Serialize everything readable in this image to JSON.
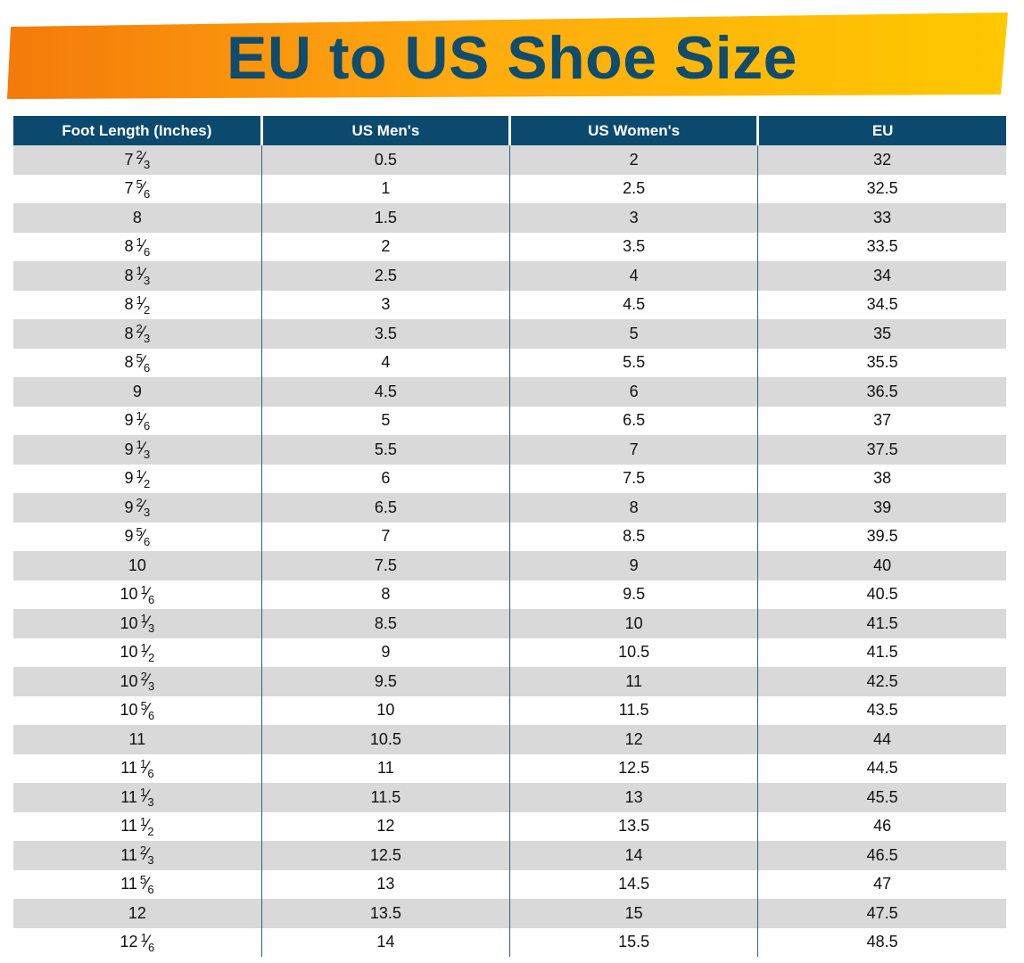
{
  "title": "EU to US Shoe Size",
  "colors": {
    "banner_start": "#f47a0a",
    "banner_end": "#ffc800",
    "title_text": "#0f4c6e",
    "header_bg": "#0b4a6e",
    "row_shade": "#d9d9d9"
  },
  "table": {
    "headers": [
      "Foot Length (Inches)",
      "US Men's",
      "US Women's",
      "EU"
    ],
    "rows": [
      {
        "foot": {
          "whole": "7",
          "num": "2",
          "den": "3"
        },
        "men": "0.5",
        "women": "2",
        "eu": "32"
      },
      {
        "foot": {
          "whole": "7",
          "num": "5",
          "den": "6"
        },
        "men": "1",
        "women": "2.5",
        "eu": "32.5"
      },
      {
        "foot": {
          "whole": "8",
          "num": "",
          "den": ""
        },
        "men": "1.5",
        "women": "3",
        "eu": "33"
      },
      {
        "foot": {
          "whole": "8",
          "num": "1",
          "den": "6"
        },
        "men": "2",
        "women": "3.5",
        "eu": "33.5"
      },
      {
        "foot": {
          "whole": "8",
          "num": "1",
          "den": "3"
        },
        "men": "2.5",
        "women": "4",
        "eu": "34"
      },
      {
        "foot": {
          "whole": "8",
          "num": "1",
          "den": "2"
        },
        "men": "3",
        "women": "4.5",
        "eu": "34.5"
      },
      {
        "foot": {
          "whole": "8",
          "num": "2",
          "den": "3"
        },
        "men": "3.5",
        "women": "5",
        "eu": "35"
      },
      {
        "foot": {
          "whole": "8",
          "num": "5",
          "den": "6"
        },
        "men": "4",
        "women": "5.5",
        "eu": "35.5"
      },
      {
        "foot": {
          "whole": "9",
          "num": "",
          "den": ""
        },
        "men": "4.5",
        "women": "6",
        "eu": "36.5"
      },
      {
        "foot": {
          "whole": "9",
          "num": "1",
          "den": "6"
        },
        "men": "5",
        "women": "6.5",
        "eu": "37"
      },
      {
        "foot": {
          "whole": "9",
          "num": "1",
          "den": "3"
        },
        "men": "5.5",
        "women": "7",
        "eu": "37.5"
      },
      {
        "foot": {
          "whole": "9",
          "num": "1",
          "den": "2"
        },
        "men": "6",
        "women": "7.5",
        "eu": "38"
      },
      {
        "foot": {
          "whole": "9",
          "num": "2",
          "den": "3"
        },
        "men": "6.5",
        "women": "8",
        "eu": "39"
      },
      {
        "foot": {
          "whole": "9",
          "num": "5",
          "den": "6"
        },
        "men": "7",
        "women": "8.5",
        "eu": "39.5"
      },
      {
        "foot": {
          "whole": "10",
          "num": "",
          "den": ""
        },
        "men": "7.5",
        "women": "9",
        "eu": "40"
      },
      {
        "foot": {
          "whole": "10",
          "num": "1",
          "den": "6"
        },
        "men": "8",
        "women": "9.5",
        "eu": "40.5"
      },
      {
        "foot": {
          "whole": "10",
          "num": "1",
          "den": "3"
        },
        "men": "8.5",
        "women": "10",
        "eu": "41.5"
      },
      {
        "foot": {
          "whole": "10",
          "num": "1",
          "den": "2"
        },
        "men": "9",
        "women": "10.5",
        "eu": "41.5"
      },
      {
        "foot": {
          "whole": "10",
          "num": "2",
          "den": "3"
        },
        "men": "9.5",
        "women": "11",
        "eu": "42.5"
      },
      {
        "foot": {
          "whole": "10",
          "num": "5",
          "den": "6"
        },
        "men": "10",
        "women": "11.5",
        "eu": "43.5"
      },
      {
        "foot": {
          "whole": "11",
          "num": "",
          "den": ""
        },
        "men": "10.5",
        "women": "12",
        "eu": "44"
      },
      {
        "foot": {
          "whole": "11",
          "num": "1",
          "den": "6"
        },
        "men": "11",
        "women": "12.5",
        "eu": "44.5"
      },
      {
        "foot": {
          "whole": "11",
          "num": "1",
          "den": "3"
        },
        "men": "11.5",
        "women": "13",
        "eu": "45.5"
      },
      {
        "foot": {
          "whole": "11",
          "num": "1",
          "den": "2"
        },
        "men": "12",
        "women": "13.5",
        "eu": "46"
      },
      {
        "foot": {
          "whole": "11",
          "num": "2",
          "den": "3"
        },
        "men": "12.5",
        "women": "14",
        "eu": "46.5"
      },
      {
        "foot": {
          "whole": "11",
          "num": "5",
          "den": "6"
        },
        "men": "13",
        "women": "14.5",
        "eu": "47"
      },
      {
        "foot": {
          "whole": "12",
          "num": "",
          "den": ""
        },
        "men": "13.5",
        "women": "15",
        "eu": "47.5"
      },
      {
        "foot": {
          "whole": "12",
          "num": "1",
          "den": "6"
        },
        "men": "14",
        "women": "15.5",
        "eu": "48.5"
      }
    ]
  }
}
